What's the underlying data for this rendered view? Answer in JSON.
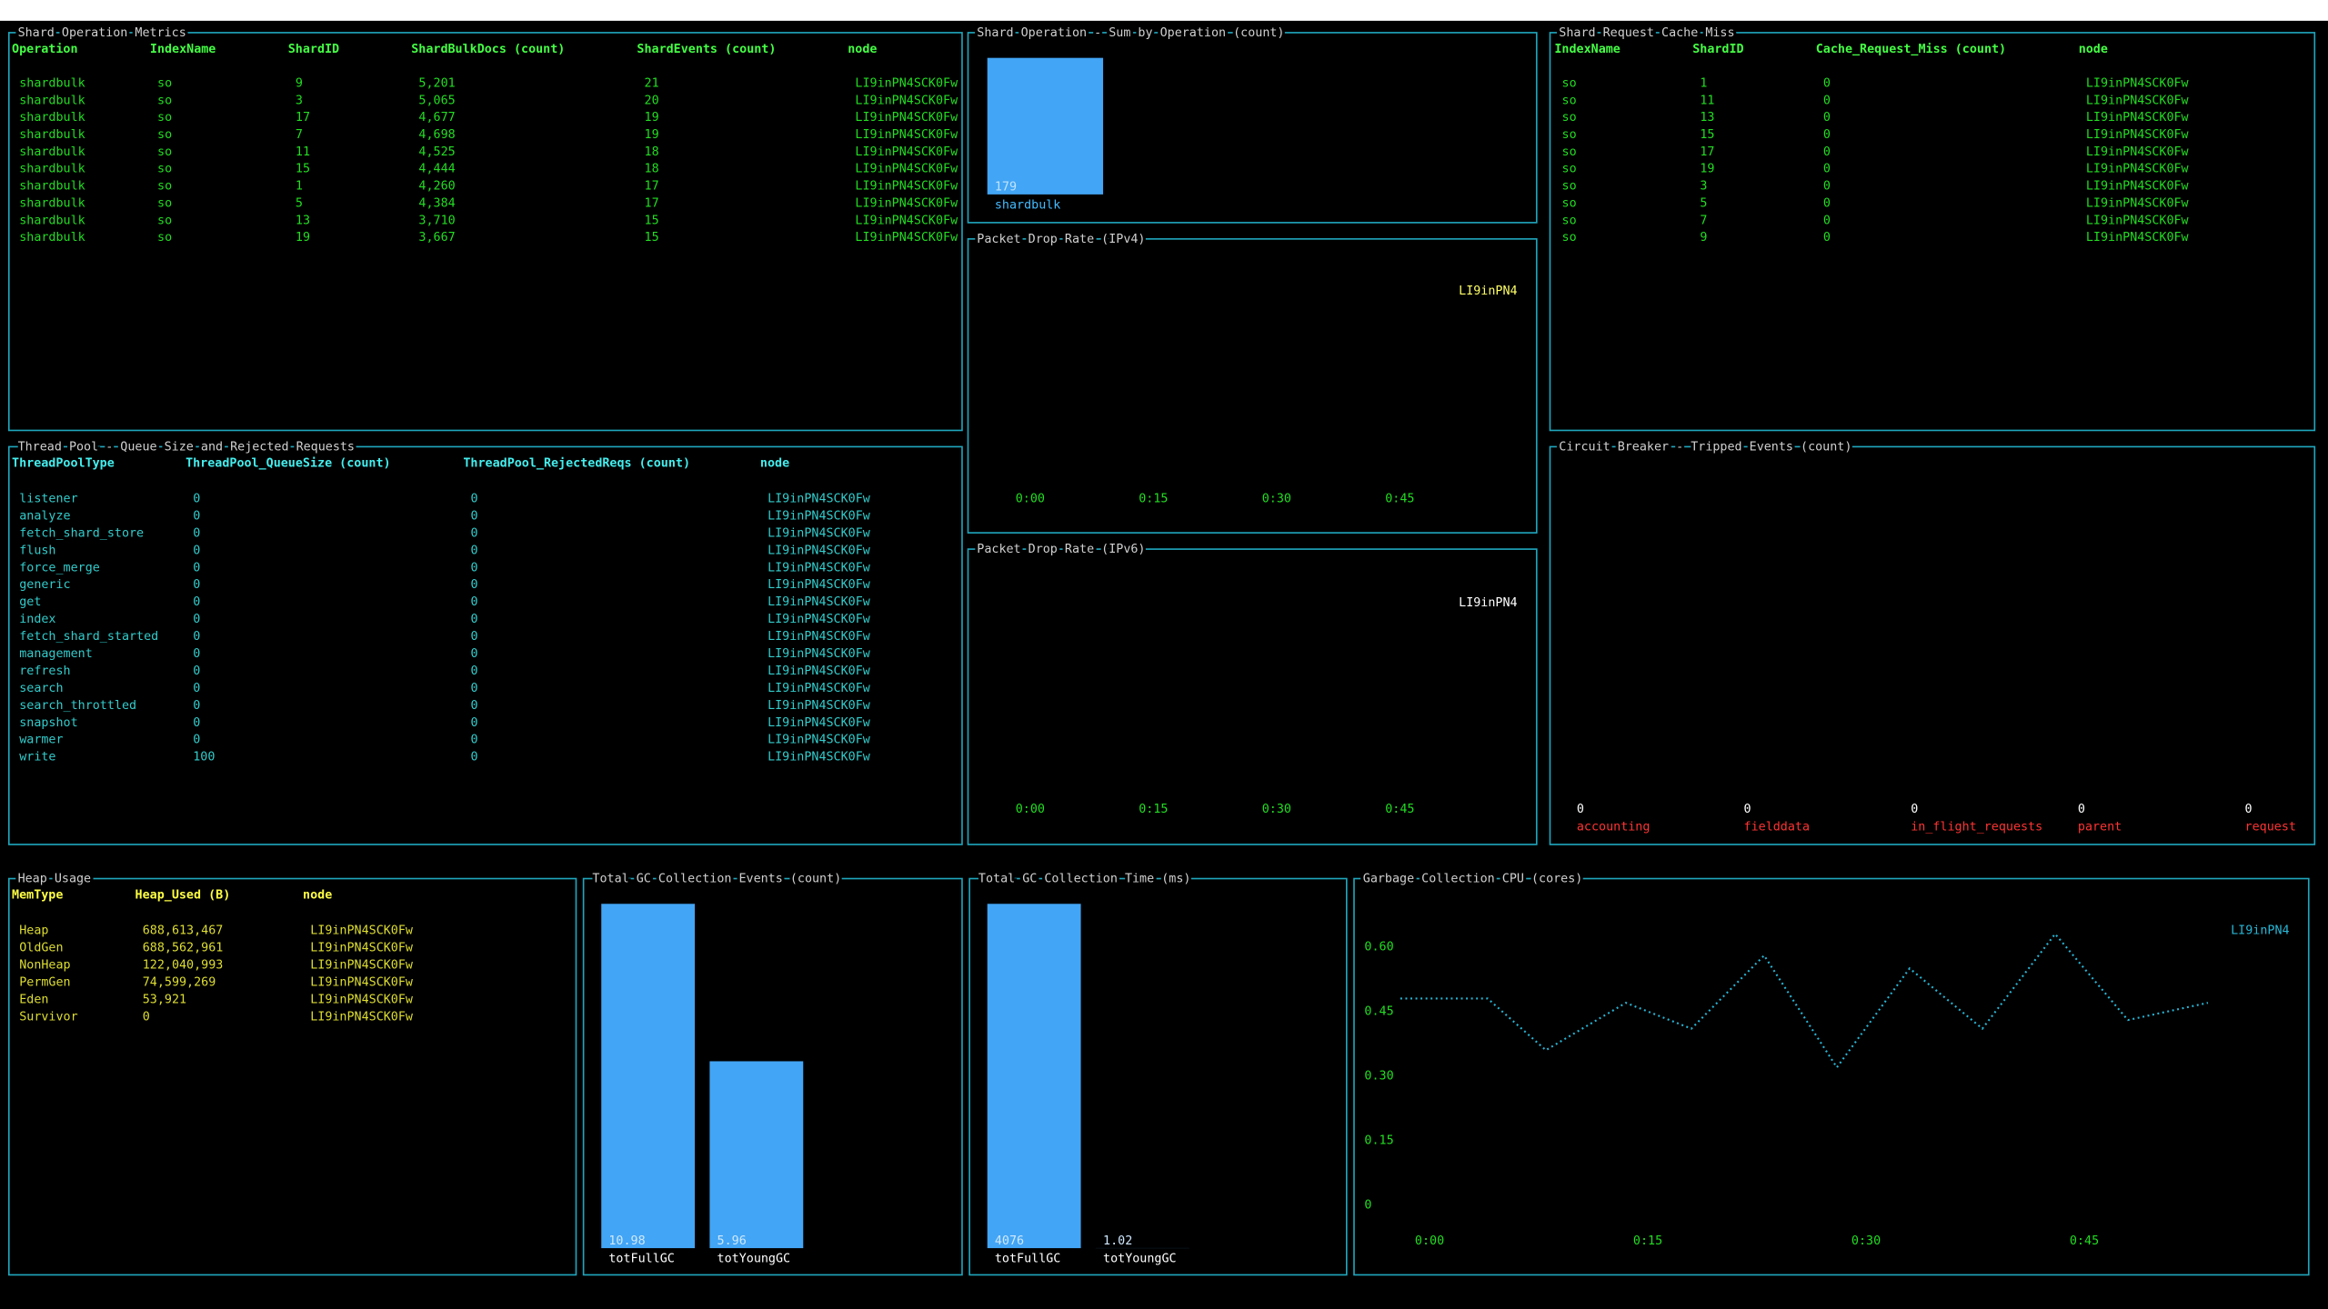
{
  "tables": [
    {
      "title": "Shard Operation Metrics",
      "columns": [
        "Operation",
        "IndexName",
        "ShardID",
        "ShardBulkDocs (count)",
        "ShardEvents (count)",
        "node"
      ],
      "rows": [
        [
          "shardbulk",
          "so",
          "9",
          "5,201",
          "21",
          "LI9inPN4SCK0Fw"
        ],
        [
          "shardbulk",
          "so",
          "3",
          "5,065",
          "20",
          "LI9inPN4SCK0Fw"
        ],
        [
          "shardbulk",
          "so",
          "17",
          "4,677",
          "19",
          "LI9inPN4SCK0Fw"
        ],
        [
          "shardbulk",
          "so",
          "7",
          "4,698",
          "19",
          "LI9inPN4SCK0Fw"
        ],
        [
          "shardbulk",
          "so",
          "11",
          "4,525",
          "18",
          "LI9inPN4SCK0Fw"
        ],
        [
          "shardbulk",
          "so",
          "15",
          "4,444",
          "18",
          "LI9inPN4SCK0Fw"
        ],
        [
          "shardbulk",
          "so",
          "1",
          "4,260",
          "17",
          "LI9inPN4SCK0Fw"
        ],
        [
          "shardbulk",
          "so",
          "5",
          "4,384",
          "17",
          "LI9inPN4SCK0Fw"
        ],
        [
          "shardbulk",
          "so",
          "13",
          "3,710",
          "15",
          "LI9inPN4SCK0Fw"
        ],
        [
          "shardbulk",
          "so",
          "19",
          "3,667",
          "15",
          "LI9inPN4SCK0Fw"
        ]
      ]
    },
    {
      "title": "Shard Request Cache Miss",
      "columns": [
        "IndexName",
        "ShardID",
        "Cache_Request_Miss (count)",
        "node"
      ],
      "rows": [
        [
          "so",
          "1",
          "0",
          "LI9inPN4SCK0Fw"
        ],
        [
          "so",
          "11",
          "0",
          "LI9inPN4SCK0Fw"
        ],
        [
          "so",
          "13",
          "0",
          "LI9inPN4SCK0Fw"
        ],
        [
          "so",
          "15",
          "0",
          "LI9inPN4SCK0Fw"
        ],
        [
          "so",
          "17",
          "0",
          "LI9inPN4SCK0Fw"
        ],
        [
          "so",
          "19",
          "0",
          "LI9inPN4SCK0Fw"
        ],
        [
          "so",
          "3",
          "0",
          "LI9inPN4SCK0Fw"
        ],
        [
          "so",
          "5",
          "0",
          "LI9inPN4SCK0Fw"
        ],
        [
          "so",
          "7",
          "0",
          "LI9inPN4SCK0Fw"
        ],
        [
          "so",
          "9",
          "0",
          "LI9inPN4SCK0Fw"
        ]
      ]
    },
    {
      "title": "Thread Pool - Queue Size and Rejected Requests",
      "columns": [
        "ThreadPoolType",
        "ThreadPool_QueueSize (count)",
        "ThreadPool_RejectedReqs (count)",
        "node"
      ],
      "rows": [
        [
          "listener",
          "0",
          "0",
          "LI9inPN4SCK0Fw"
        ],
        [
          "analyze",
          "0",
          "0",
          "LI9inPN4SCK0Fw"
        ],
        [
          "fetch_shard_store",
          "0",
          "0",
          "LI9inPN4SCK0Fw"
        ],
        [
          "flush",
          "0",
          "0",
          "LI9inPN4SCK0Fw"
        ],
        [
          "force_merge",
          "0",
          "0",
          "LI9inPN4SCK0Fw"
        ],
        [
          "generic",
          "0",
          "0",
          "LI9inPN4SCK0Fw"
        ],
        [
          "get",
          "0",
          "0",
          "LI9inPN4SCK0Fw"
        ],
        [
          "index",
          "0",
          "0",
          "LI9inPN4SCK0Fw"
        ],
        [
          "fetch_shard_started",
          "0",
          "0",
          "LI9inPN4SCK0Fw"
        ],
        [
          "management",
          "0",
          "0",
          "LI9inPN4SCK0Fw"
        ],
        [
          "refresh",
          "0",
          "0",
          "LI9inPN4SCK0Fw"
        ],
        [
          "search",
          "0",
          "0",
          "LI9inPN4SCK0Fw"
        ],
        [
          "search_throttled",
          "0",
          "0",
          "LI9inPN4SCK0Fw"
        ],
        [
          "snapshot",
          "0",
          "0",
          "LI9inPN4SCK0Fw"
        ],
        [
          "warmer",
          "0",
          "0",
          "LI9inPN4SCK0Fw"
        ],
        [
          "write",
          "100",
          "0",
          "LI9inPN4SCK0Fw"
        ]
      ]
    },
    {
      "title": "Heap Usage",
      "columns": [
        "MemType",
        "Heap_Used (B)",
        "node"
      ],
      "rows": [
        [
          "Heap",
          "688,613,467",
          "LI9inPN4SCK0Fw"
        ],
        [
          "OldGen",
          "688,562,961",
          "LI9inPN4SCK0Fw"
        ],
        [
          "NonHeap",
          "122,040,993",
          "LI9inPN4SCK0Fw"
        ],
        [
          "PermGen",
          "74,599,269",
          "LI9inPN4SCK0Fw"
        ],
        [
          "Eden",
          "53,921",
          "LI9inPN4SCK0Fw"
        ],
        [
          "Survivor",
          "0",
          "LI9inPN4SCK0Fw"
        ]
      ]
    }
  ],
  "chart_data": [
    {
      "type": "bar",
      "title": "Shard Operation - Sum by Operation (count)",
      "categories": [
        "shardbulk"
      ],
      "values": [
        179
      ],
      "color": "#42a5f5"
    },
    {
      "type": "line",
      "title": "Packet Drop Rate (IPv4)",
      "x": [],
      "series": [
        {
          "name": "LI9inPN4",
          "color": "#ffff66",
          "values": []
        }
      ],
      "xlim": [
        0,
        60
      ],
      "xticks": [
        {
          "value": 0,
          "label": "0:00"
        },
        {
          "value": 15,
          "label": "0:15"
        },
        {
          "value": 30,
          "label": "0:30"
        },
        {
          "value": 45,
          "label": "0:45"
        }
      ]
    },
    {
      "type": "line",
      "title": "Packet Drop Rate (IPv6)",
      "x": [],
      "series": [
        {
          "name": "LI9inPN4",
          "color": "#ffffff",
          "values": []
        }
      ],
      "xlim": [
        0,
        60
      ],
      "xticks": [
        {
          "value": 0,
          "label": "0:00"
        },
        {
          "value": 15,
          "label": "0:15"
        },
        {
          "value": 30,
          "label": "0:30"
        },
        {
          "value": 45,
          "label": "0:45"
        }
      ]
    },
    {
      "type": "bar",
      "title": "Circuit Breaker - Tripped Events (count)",
      "categories": [
        "accounting",
        "fielddata",
        "in_flight_requests",
        "parent",
        "request"
      ],
      "values": [
        0,
        0,
        0,
        0,
        0
      ],
      "color": "#42a5f5"
    },
    {
      "type": "bar",
      "title": "Total GC Collection Events (count)",
      "categories": [
        "totFullGC",
        "totYoungGC"
      ],
      "values": [
        10.98,
        5.96
      ],
      "color": "#42a5f5"
    },
    {
      "type": "bar",
      "title": "Total GC Collection Time (ms)",
      "categories": [
        "totFullGC",
        "totYoungGC"
      ],
      "values": [
        4076,
        1.02
      ],
      "color": "#42a5f5"
    },
    {
      "type": "line",
      "title": "Garbage Collection CPU (cores)",
      "x": [
        -1,
        5,
        9,
        14.5,
        19,
        24,
        29,
        34,
        39,
        44,
        49,
        54.5
      ],
      "series": [
        {
          "name": "LI9inPN4",
          "color": "#29b6d6",
          "values": [
            0.48,
            0.48,
            0.36,
            0.47,
            0.41,
            0.58,
            0.32,
            0.55,
            0.41,
            0.63,
            0.43,
            0.47
          ]
        }
      ],
      "xlim": [
        -1,
        55
      ],
      "xticks": [
        {
          "value": 0,
          "label": "0:00"
        },
        {
          "value": 15,
          "label": "0:15"
        },
        {
          "value": 30,
          "label": "0:30"
        },
        {
          "value": 45,
          "label": "0:45"
        }
      ],
      "ylim": [
        0,
        0.65
      ],
      "yticks": [
        0,
        0.15,
        {
          "value": 0.3,
          "label": "0.30"
        },
        0.45,
        {
          "value": 0.6,
          "label": "0.60"
        }
      ]
    }
  ]
}
